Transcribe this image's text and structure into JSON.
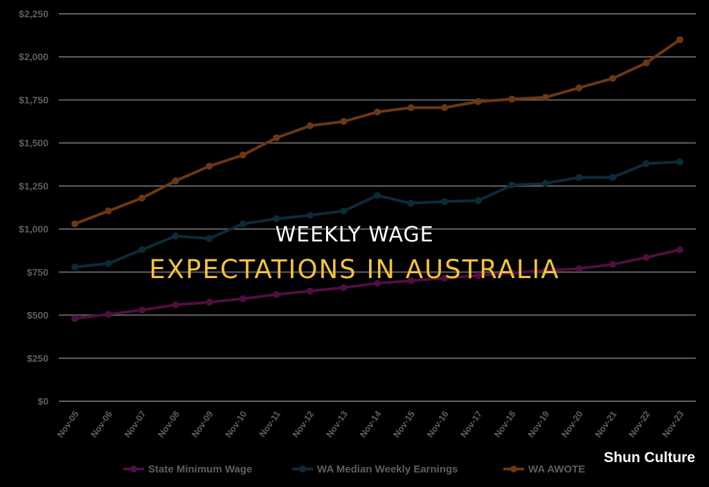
{
  "headline": {
    "line1": "WEEKLY WAGE",
    "line2": "EXPECTATIONS IN AUSTRALIA"
  },
  "watermark": "Shun Culture",
  "colors": {
    "background": "#000000",
    "grid": "#d9d9d9",
    "headline_accent": "#f3c23b"
  },
  "chart_data": {
    "type": "line",
    "categories": [
      "Nov-05",
      "Nov-06",
      "Nov-07",
      "Nov-08",
      "Nov-09",
      "Nov-10",
      "Nov-11",
      "Nov-12",
      "Nov-13",
      "Nov-14",
      "Nov-15",
      "Nov-16",
      "Nov-17",
      "Nov-18",
      "Nov-19",
      "Nov-20",
      "Nov-21",
      "Nov-22",
      "Nov-23"
    ],
    "ytick_labels": [
      "$0",
      "$250",
      "$500",
      "$750",
      "$1,000",
      "$1,250",
      "$1,500",
      "$1,750",
      "$2,000",
      "$2,250"
    ],
    "ylim": [
      0,
      2250
    ],
    "grid": true,
    "legend_position": "bottom",
    "series": [
      {
        "name": "State Minimum Wage",
        "color": "#b1208f",
        "values": [
          480,
          505,
          530,
          560,
          575,
          595,
          620,
          640,
          660,
          685,
          700,
          715,
          730,
          745,
          760,
          770,
          795,
          835,
          880
        ]
      },
      {
        "name": "WA Median Weekly Earnings",
        "color": "#1c5f80",
        "values": [
          780,
          800,
          880,
          960,
          945,
          1030,
          1060,
          1080,
          1105,
          1195,
          1150,
          1160,
          1165,
          1255,
          1265,
          1300,
          1300,
          1380,
          1390
        ]
      },
      {
        "name": "WA AWOTE",
        "color": "#f07a2e",
        "values": [
          1030,
          1105,
          1180,
          1280,
          1365,
          1430,
          1530,
          1600,
          1625,
          1680,
          1705,
          1705,
          1740,
          1755,
          1765,
          1820,
          1875,
          1965,
          2100
        ]
      }
    ]
  }
}
